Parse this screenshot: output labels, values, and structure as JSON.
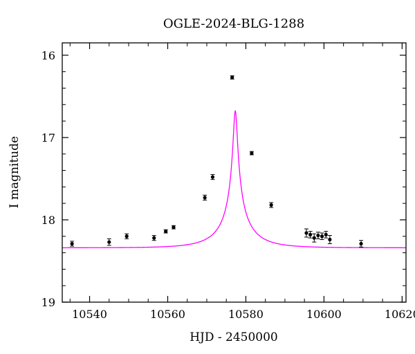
{
  "chart_data": {
    "type": "scatter",
    "title": "OGLE-2024-BLG-1288",
    "xlabel": "HJD - 2450000",
    "ylabel": "I magnitude",
    "xlim": [
      10533,
      10621
    ],
    "ylim": [
      19,
      15.85
    ],
    "y_inverted": true,
    "grid": false,
    "x_ticks": [
      10540,
      10560,
      10580,
      10600,
      10620
    ],
    "y_ticks": [
      16,
      17,
      18,
      19
    ],
    "x_minor_step": 5,
    "y_minor_step": 0.2,
    "colors": {
      "data": "#000000",
      "model": "#ff00ff"
    },
    "series": [
      {
        "kind": "points",
        "x": [
          10535.5,
          10545,
          10549.5,
          10556.5,
          10559.5,
          10561.5,
          10569.5,
          10571.5,
          10576.5,
          10581.5,
          10586.5,
          10595.5,
          10596.5,
          10597.5,
          10598.5,
          10599.5,
          10600.5,
          10601.5,
          10609.5
        ],
        "y": [
          18.29,
          18.27,
          18.2,
          18.22,
          18.14,
          18.09,
          17.73,
          17.48,
          16.27,
          17.19,
          17.82,
          18.16,
          18.18,
          18.22,
          18.19,
          18.2,
          18.18,
          18.24,
          18.29
        ],
        "yerr": [
          0.03,
          0.04,
          0.03,
          0.03,
          0.02,
          0.02,
          0.03,
          0.03,
          0.02,
          0.02,
          0.03,
          0.05,
          0.04,
          0.05,
          0.04,
          0.04,
          0.04,
          0.05,
          0.04
        ]
      },
      {
        "kind": "model",
        "t0": 10577.3,
        "u0": 0.052,
        "tE": 9.2,
        "base_mag": 18.34,
        "fs": 0.2
      }
    ]
  }
}
